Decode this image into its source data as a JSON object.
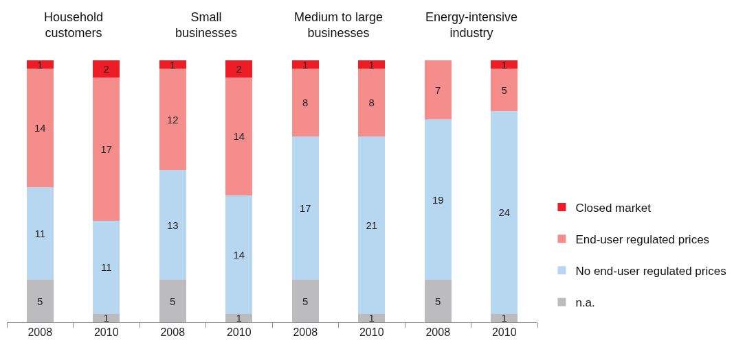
{
  "chart_data": {
    "type": "bar",
    "stacked": true,
    "categories": [
      "2008",
      "2010",
      "2008",
      "2010",
      "2008",
      "2010",
      "2008",
      "2010"
    ],
    "annotations": [
      "Household customers",
      "Small businesses",
      "Medium to large businesses",
      "Energy-intensive industry"
    ],
    "series": [
      {
        "name": "n.a.",
        "color": "#bcbcbe",
        "values": [
          5,
          1,
          5,
          1,
          5,
          1,
          5,
          1
        ]
      },
      {
        "name": "No end-user regulated prices",
        "color": "#b7d6ef",
        "values": [
          11,
          11,
          13,
          14,
          17,
          21,
          19,
          24
        ]
      },
      {
        "name": "End-user regulated prices",
        "color": "#f58d8d",
        "values": [
          14,
          17,
          12,
          14,
          8,
          8,
          7,
          5
        ]
      },
      {
        "name": "Closed market",
        "color": "#ee1c25",
        "values": [
          1,
          2,
          1,
          2,
          1,
          1,
          null,
          1
        ]
      }
    ],
    "data_labels": true,
    "legend": "bottom right"
  }
}
